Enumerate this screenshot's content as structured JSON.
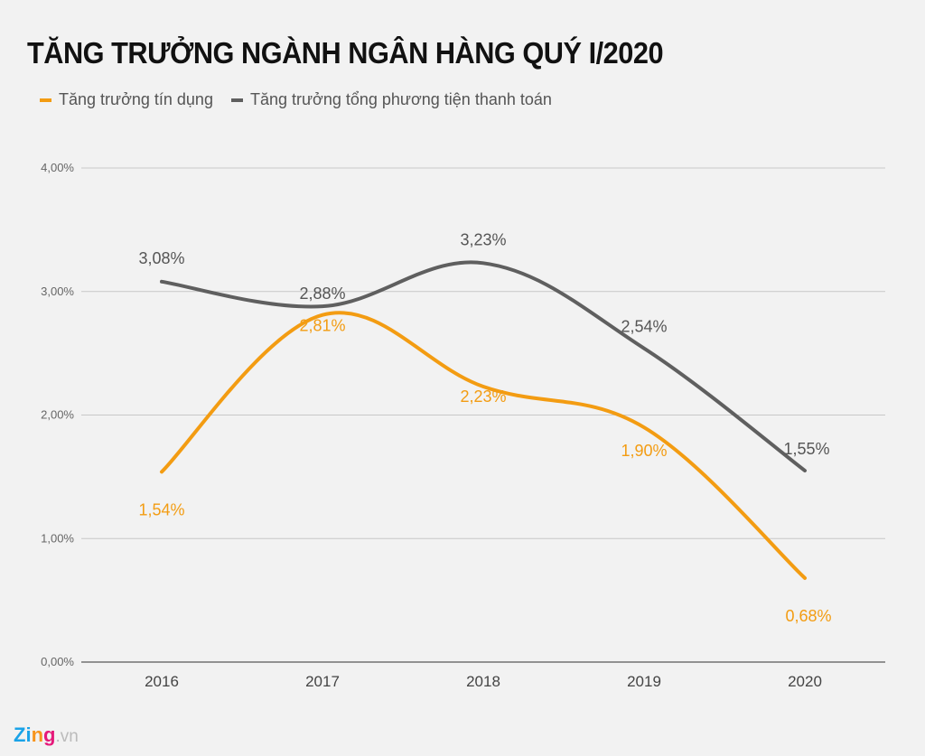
{
  "chart_data": {
    "type": "line",
    "title": "TĂNG TRƯỞNG NGÀNH NGÂN HÀNG QUÝ I/2020",
    "categories": [
      "2016",
      "2017",
      "2018",
      "2019",
      "2020"
    ],
    "ylim": [
      0,
      4
    ],
    "yticks": [
      "0,00%",
      "1,00%",
      "2,00%",
      "3,00%",
      "4,00%"
    ],
    "grid": true,
    "legend_position": "top-left",
    "series": [
      {
        "name": "Tăng trưởng tín dụng",
        "color": "#f39c12",
        "values": [
          1.54,
          2.81,
          2.23,
          1.9,
          0.68
        ],
        "labels": [
          "1,54%",
          "2,81%",
          "2,23%",
          "1,90%",
          "0,68%"
        ]
      },
      {
        "name": "Tăng trưởng tổng phương tiện thanh toán",
        "color": "#5f5f5f",
        "values": [
          3.08,
          2.88,
          3.23,
          2.54,
          1.55
        ],
        "labels": [
          "3,08%",
          "2,88%",
          "3,23%",
          "2,54%",
          "1,55%"
        ]
      }
    ]
  },
  "logo": {
    "brand": "Zing",
    "suffix": ".vn"
  }
}
